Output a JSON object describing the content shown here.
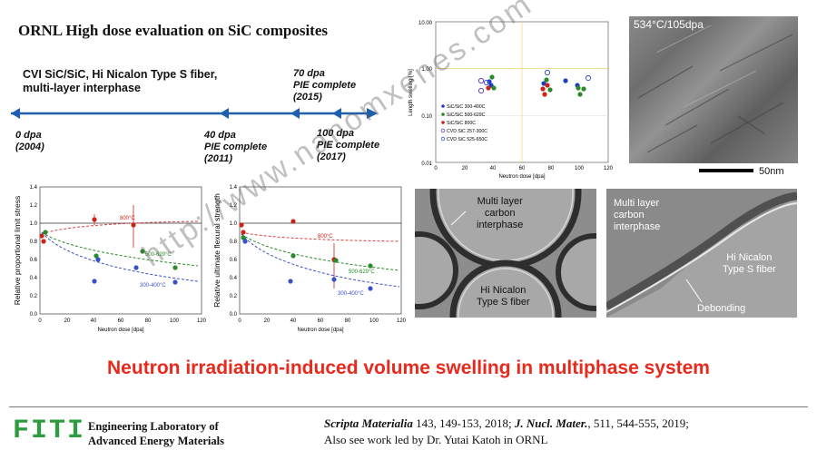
{
  "title": "ORNL High dose evaluation on SiC composites",
  "material": {
    "line1": "CVI SiC/SiC, Hi Nicalon Type S fiber,",
    "line2": "multi-layer interphase"
  },
  "timeline": [
    {
      "dose": "0 dpa",
      "note": "",
      "year": "(2004)"
    },
    {
      "dose": "40 dpa",
      "note": "PIE complete",
      "year": "(2011)"
    },
    {
      "dose": "70 dpa",
      "note": "PIE complete",
      "year": "(2015)"
    },
    {
      "dose": "100 dpa",
      "note": "PIE complete",
      "year": "(2017)"
    }
  ],
  "swelling_chart": {
    "ylabel": "Length swelling [%]",
    "xlabel": "Neutron dose [dpa]",
    "y_ticks": [
      "10.00",
      "1.00",
      "0.10",
      "0.01"
    ],
    "x_ticks": [
      "0",
      "20",
      "40",
      "60",
      "80",
      "100",
      "120"
    ],
    "legend": [
      "SiC/SiC 300-400C",
      "SiC/SiC 500-629C",
      "SiC/SiC 800C",
      "CVD SiC 257-300C",
      "CVD SiC 525-650C"
    ],
    "colors": [
      "#1f3fbf",
      "#2a8a2a",
      "#c8241a",
      "#6a3fbf",
      "#3b55e0"
    ]
  },
  "pls_chart": {
    "ylabel": "Relative proportional limit stress",
    "xlabel": "Neutron dose [dpa]",
    "y_ticks": [
      "1.4",
      "1.2",
      "1.0",
      "0.8",
      "0.6",
      "0.4",
      "0.2",
      "0.0"
    ],
    "x_ticks": [
      "0",
      "20",
      "40",
      "60",
      "80",
      "100",
      "120"
    ],
    "labels": [
      "800°C",
      "500-629°C",
      "300-400°C"
    ]
  },
  "ufs_chart": {
    "ylabel": "Relative ultimate flexural strength",
    "xlabel": "Neutron dose [dpa]",
    "y_ticks": [
      "1.4",
      "1.2",
      "1.0",
      "0.8",
      "0.6",
      "0.4",
      "0.2",
      "0.0"
    ],
    "x_ticks": [
      "0",
      "20",
      "40",
      "60",
      "80",
      "100",
      "120"
    ],
    "labels": [
      "800°C",
      "500-629°C",
      "300-400°C"
    ]
  },
  "micrographs": {
    "top_label": "534°C/105dpa",
    "scale": "50nm",
    "left_interphase": [
      "Multi layer",
      "carbon",
      "interphase"
    ],
    "left_fiber": [
      "Hi Nicalon",
      "Type S fiber"
    ],
    "right_interphase": [
      "Multi layer",
      "carbon",
      "interphase"
    ],
    "right_fiber": [
      "Hi Nicalon",
      "Type S fiber"
    ],
    "debonding": "Debonding"
  },
  "headline": "Neutron irradiation-induced volume swelling in multiphase system",
  "footer": {
    "logo": "FITI",
    "lab_line1": "Engineering Laboratory of",
    "lab_line2": "Advanced Energy Materials",
    "ref1_journal": "Scripta Materialia",
    "ref1_rest": " 143, 149-153, 2018; ",
    "ref2_journal": "J. Nucl. Mater.",
    "ref2_rest": ", 511, 544-555, 2019;",
    "ref3": "Also see work led by Dr. Yutai Katoh in ORNL"
  },
  "watermark": "http://www.nanomxenes.com",
  "accent_color": "#e8291c",
  "brand_green": "#2e9b3e"
}
